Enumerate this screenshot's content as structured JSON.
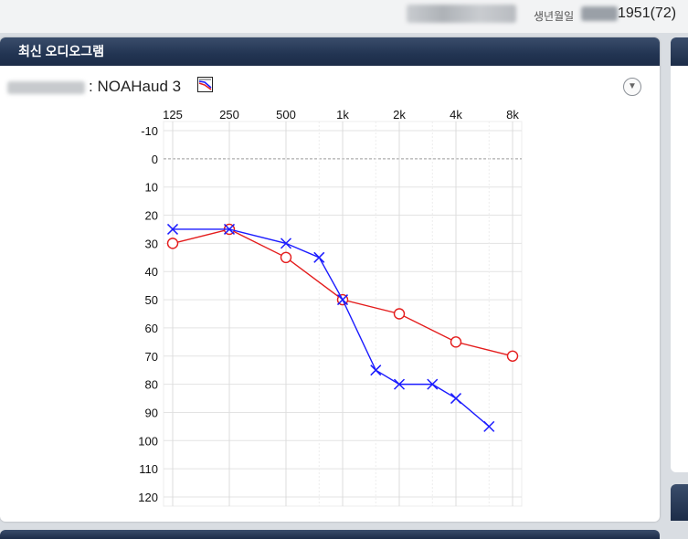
{
  "header": {
    "dob_label": "생년월일",
    "dob_value": "1951(72)"
  },
  "panel": {
    "title": "최신 오디오그램",
    "device_label": ": NOAHaud 3"
  },
  "colors": {
    "right_ear": "#e41c1c",
    "left_ear": "#1a1aff",
    "header_bg": "#223452"
  },
  "icons": {
    "device": "audiogram-device-icon",
    "dropdown": "chevron-down-circle-icon"
  },
  "chart_data": {
    "type": "line",
    "x_categories": [
      "125",
      "250",
      "500",
      "1k",
      "2k",
      "4k",
      "8k"
    ],
    "x_log_hz": [
      125,
      250,
      500,
      1000,
      2000,
      4000,
      8000
    ],
    "y_ticks": [
      -10,
      0,
      10,
      20,
      30,
      40,
      50,
      60,
      70,
      80,
      90,
      100,
      110,
      120
    ],
    "ylim": [
      -10,
      120
    ],
    "y_inverted": true,
    "grid": true,
    "series": [
      {
        "marker": "circle",
        "color": "#e41c1c",
        "points": [
          [
            125,
            30
          ],
          [
            250,
            25
          ],
          [
            500,
            35
          ],
          [
            1000,
            50
          ],
          [
            2000,
            55
          ],
          [
            4000,
            65
          ],
          [
            8000,
            70
          ]
        ]
      },
      {
        "marker": "x",
        "color": "#1a1aff",
        "points": [
          [
            125,
            25
          ],
          [
            250,
            25
          ],
          [
            500,
            30
          ],
          [
            750,
            35
          ],
          [
            1000,
            50
          ],
          [
            1500,
            75
          ],
          [
            2000,
            80
          ],
          [
            3000,
            80
          ],
          [
            4000,
            85
          ],
          [
            6000,
            95
          ]
        ]
      }
    ]
  }
}
